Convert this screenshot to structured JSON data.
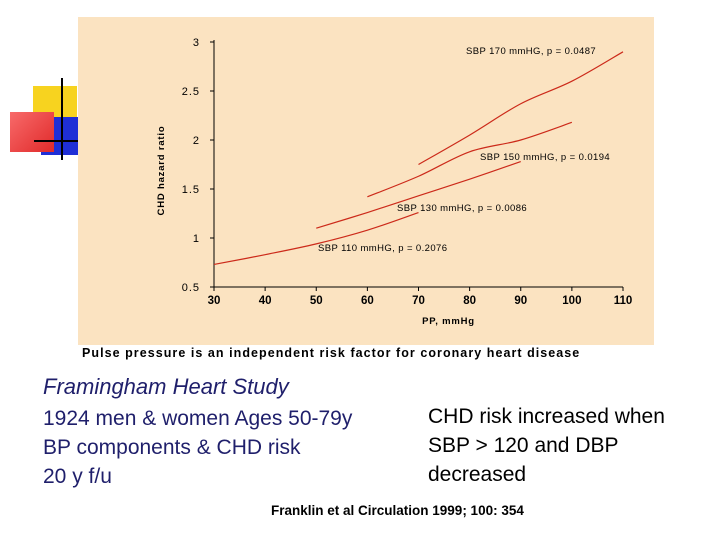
{
  "chart_data": {
    "type": "line",
    "ylabel": "CHD hazard ratio",
    "xlabel": "PP, mmHg",
    "x_ticks": [
      30,
      40,
      50,
      60,
      70,
      80,
      90,
      100,
      110
    ],
    "y_ticks": [
      "0.5",
      "1",
      "1.5",
      "2",
      "2.5",
      "3"
    ],
    "xlim": [
      30,
      110
    ],
    "ylim": [
      0.5,
      3
    ],
    "grid": false,
    "line_color": "#cc2a1a",
    "background_color": "#fbe3c1",
    "series": [
      {
        "label": "SBP 170 mmHG, p = 0.0487",
        "x": [
          70,
          80,
          90,
          100,
          110
        ],
        "y": [
          1.75,
          2.05,
          2.37,
          2.6,
          2.9
        ]
      },
      {
        "label": "SBP 150 mmHG, p = 0.0194",
        "x": [
          60,
          70,
          80,
          90,
          100
        ],
        "y": [
          1.42,
          1.63,
          1.88,
          2.0,
          2.18
        ]
      },
      {
        "label": "SBP 130 mmHG, p = 0.0086",
        "x": [
          50,
          60,
          70,
          80,
          90
        ],
        "y": [
          1.1,
          1.26,
          1.43,
          1.6,
          1.78
        ]
      },
      {
        "label": "SBP 110 mmHG, p = 0.2076",
        "x": [
          30,
          40,
          50,
          60,
          70
        ],
        "y": [
          0.73,
          0.83,
          0.94,
          1.08,
          1.26
        ]
      }
    ]
  },
  "caption": "Pulse pressure is an independent risk factor for coronary heart disease",
  "study": {
    "title": "Framingham Heart Study",
    "lines": [
      "1924 men & women Ages 50-79y",
      "BP components & CHD risk",
      "20 y f/u"
    ]
  },
  "finding": {
    "lines": [
      "CHD risk increased when",
      "SBP > 120  and DBP",
      "decreased"
    ]
  },
  "citation": "Franklin et al Circulation 1999; 100: 354",
  "decor_colors": {
    "yellow": "#f7d31f",
    "blue": "#1f2fd6",
    "red": "#f04a4a",
    "line": "#000000"
  }
}
